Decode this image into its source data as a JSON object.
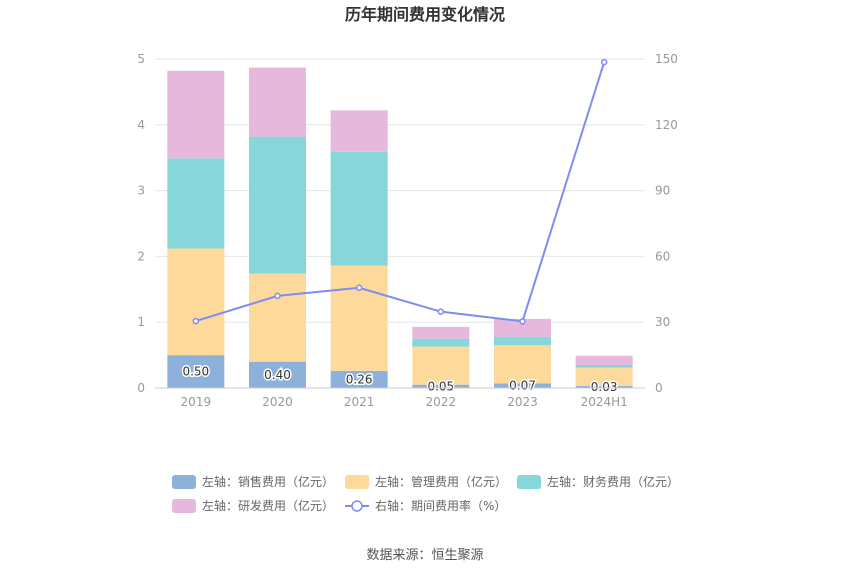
{
  "chart_data": {
    "type": "bar",
    "title": "历年期间费用变化情况",
    "categories": [
      "2019",
      "2020",
      "2021",
      "2022",
      "2023",
      "2024H1"
    ],
    "y_left": {
      "min": 0,
      "max": 5,
      "ticks": [
        "0",
        "1",
        "2",
        "3",
        "4",
        "5"
      ]
    },
    "y_right": {
      "min": 0,
      "max": 150,
      "ticks": [
        "0",
        "30",
        "60",
        "90",
        "120",
        "150"
      ]
    },
    "series": [
      {
        "name": "左轴：销售费用（亿元）",
        "axis": "left",
        "kind": "bar",
        "color": "#8eb1dc",
        "values": [
          0.5,
          0.4,
          0.26,
          0.05,
          0.07,
          0.03
        ],
        "labels": [
          "0.50",
          "0.40",
          "0.26",
          "0.05",
          "0.07",
          "0.03"
        ]
      },
      {
        "name": "左轴：管理费用（亿元）",
        "axis": "left",
        "kind": "bar",
        "color": "#fdd99c",
        "values": [
          1.62,
          1.34,
          1.6,
          0.58,
          0.58,
          0.28
        ]
      },
      {
        "name": "左轴：财务费用（亿元）",
        "axis": "left",
        "kind": "bar",
        "color": "#87d6d9",
        "values": [
          1.37,
          2.08,
          1.73,
          0.12,
          0.13,
          0.04
        ]
      },
      {
        "name": "左轴：研发费用（亿元）",
        "axis": "left",
        "kind": "bar",
        "color": "#e6b9dc",
        "values": [
          1.33,
          1.05,
          0.63,
          0.18,
          0.27,
          0.14
        ]
      },
      {
        "name": "右轴：期间费用率（%）",
        "axis": "right",
        "kind": "line",
        "color": "#7f8cf0",
        "values": [
          30.5,
          42.0,
          45.7,
          34.8,
          30.4,
          148.6
        ]
      }
    ],
    "legend_position": "bottom",
    "source": "数据来源：恒生聚源"
  }
}
